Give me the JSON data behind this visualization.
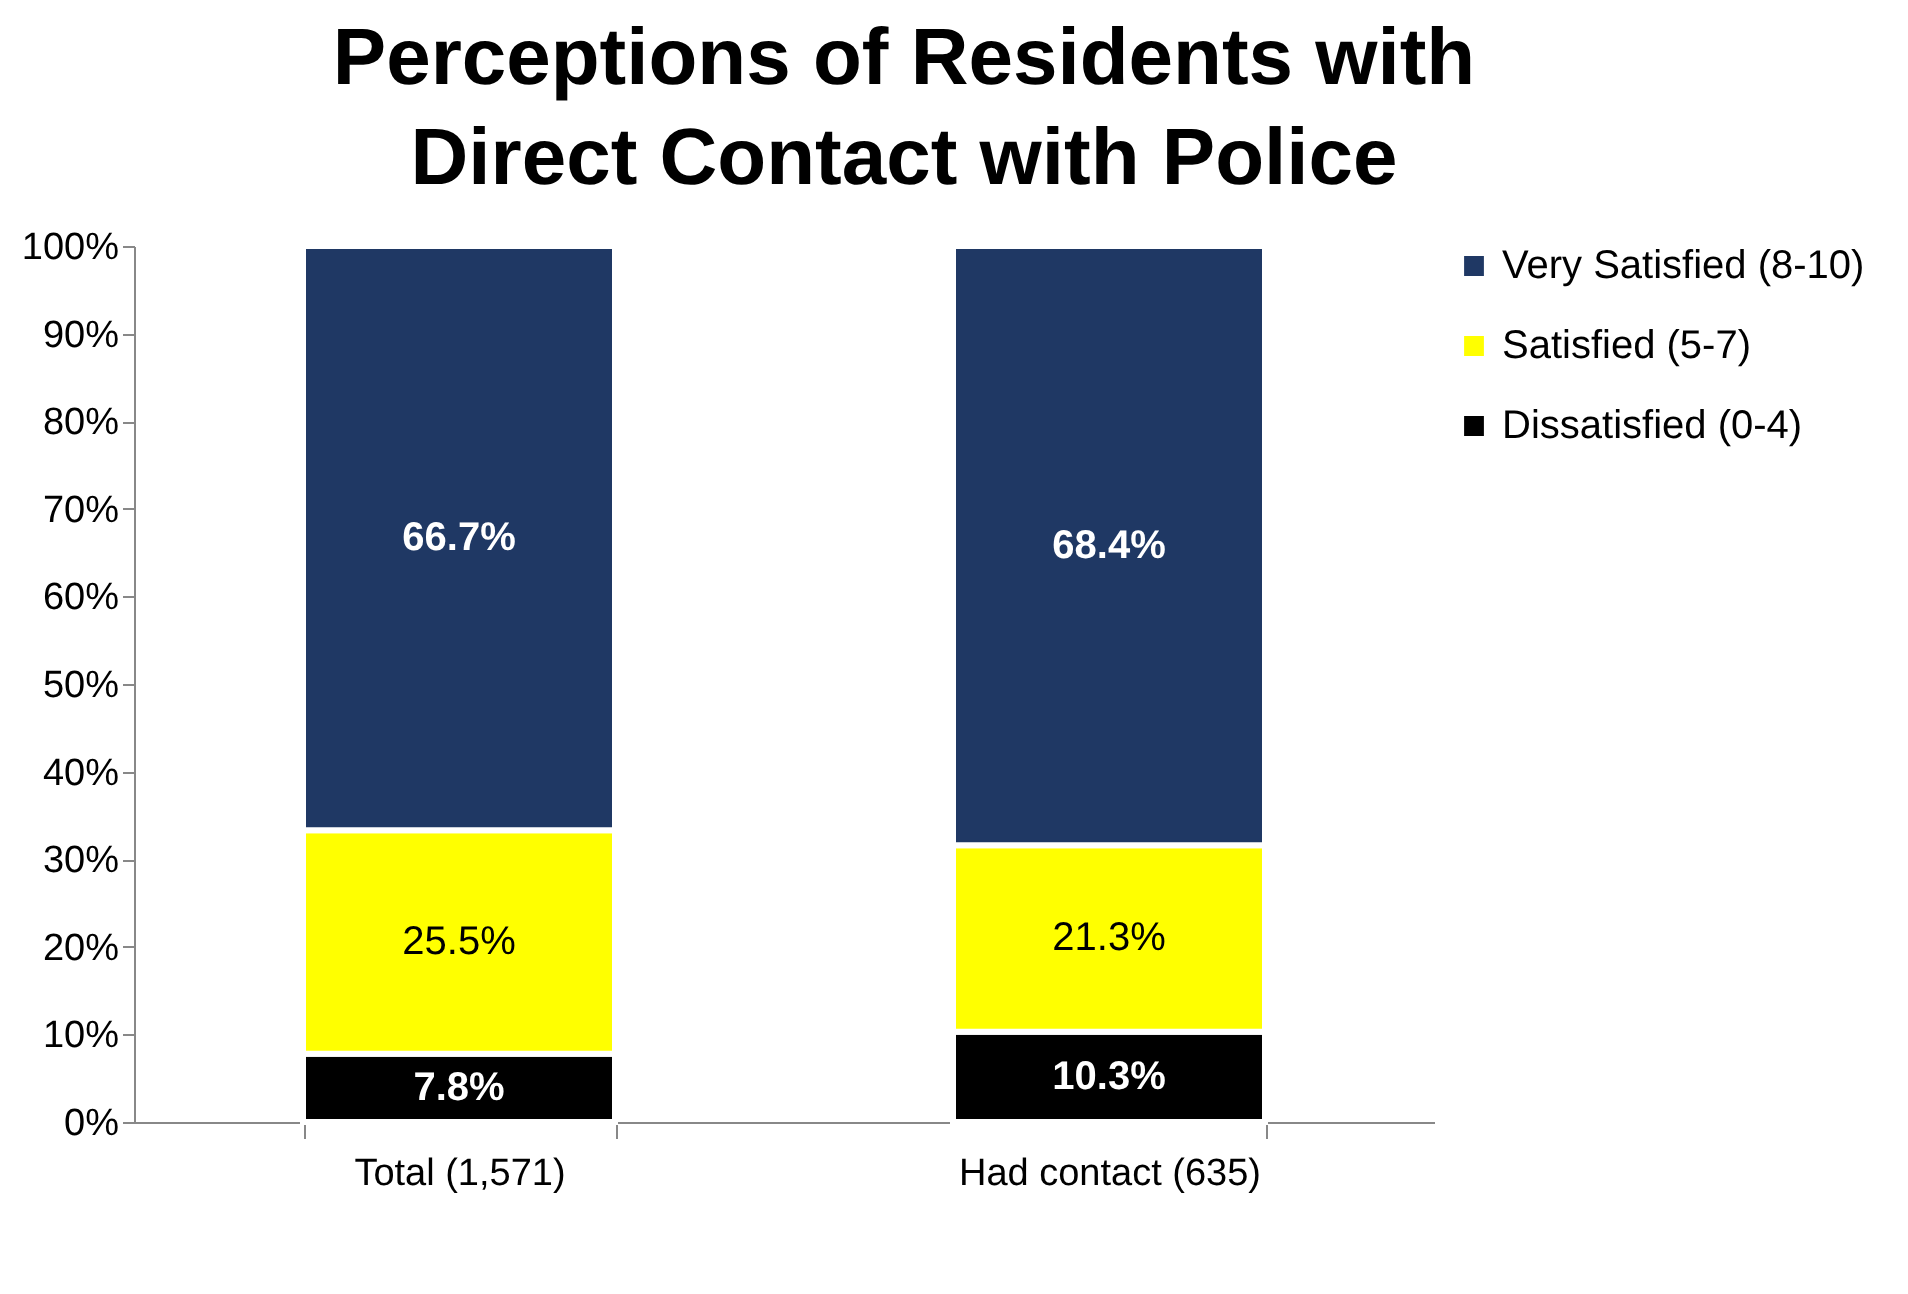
{
  "chart_data": {
    "type": "bar",
    "stacked": true,
    "title": "Perceptions of Residents with Direct Contact with Police",
    "categories": [
      "Total (1,571)",
      "Had contact (635)"
    ],
    "series": [
      {
        "name": "Dissatisfied (0-4)",
        "color": "#000000",
        "values": [
          7.8,
          10.3
        ],
        "value_labels": [
          "7.8%",
          "10.3%"
        ]
      },
      {
        "name": "Satisfied (5-7)",
        "color": "#ffff00",
        "values": [
          25.5,
          21.3
        ],
        "value_labels": [
          "25.5%",
          "21.3%"
        ]
      },
      {
        "name": "Very Satisfied (8-10)",
        "color": "#1f3864",
        "values": [
          66.7,
          68.4
        ],
        "value_labels": [
          "66.7%",
          "68.4%"
        ]
      }
    ],
    "ylim": [
      0,
      100
    ],
    "yticks": [
      {
        "value": 0,
        "label": "0%"
      },
      {
        "value": 10,
        "label": "10%"
      },
      {
        "value": 20,
        "label": "20%"
      },
      {
        "value": 30,
        "label": "30%"
      },
      {
        "value": 40,
        "label": "40%"
      },
      {
        "value": 50,
        "label": "50%"
      },
      {
        "value": 60,
        "label": "60%"
      },
      {
        "value": 70,
        "label": "70%"
      },
      {
        "value": 80,
        "label": "80%"
      },
      {
        "value": 90,
        "label": "90%"
      },
      {
        "value": 100,
        "label": "100%"
      }
    ],
    "grid": false,
    "legend": "right"
  }
}
